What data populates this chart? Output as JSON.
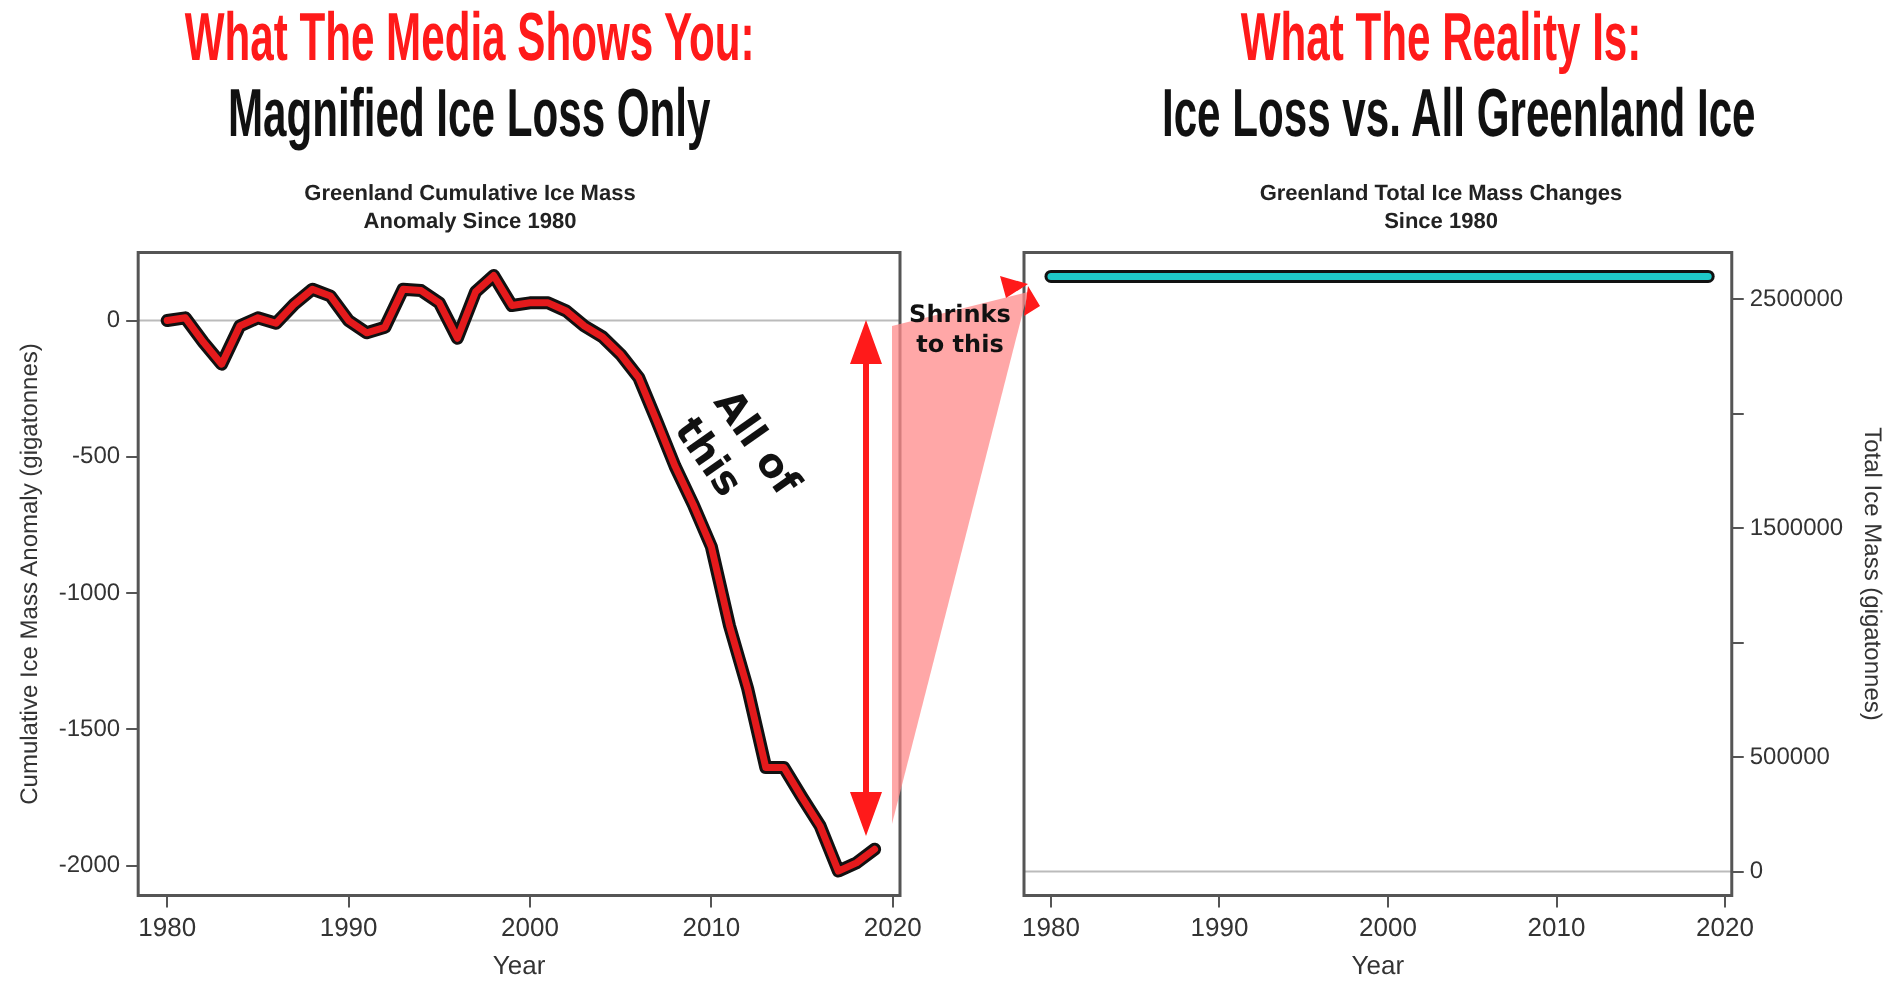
{
  "chart_data": [
    {
      "type": "line",
      "title": "Magnified Ice Loss Only",
      "subtitle": "Greenland Cumulative Ice Mass Anomaly Since 1980",
      "xlabel": "Year",
      "ylabel": "Cumulative Ice Mass Anomaly (gigatonnes)",
      "annotations": [
        "What The Media Shows You:",
        "All of this",
        "Shrinks to this"
      ],
      "x": [
        1980,
        1981,
        1982,
        1983,
        1984,
        1985,
        1986,
        1987,
        1988,
        1989,
        1990,
        1991,
        1992,
        1993,
        1994,
        1995,
        1996,
        1997,
        1998,
        1999,
        2000,
        2001,
        2002,
        2003,
        2004,
        2005,
        2006,
        2007,
        2008,
        2009,
        2010,
        2011,
        2012,
        2013,
        2014,
        2015,
        2016,
        2017,
        2018,
        2019
      ],
      "series": [
        {
          "color": "#e41a1c",
          "values": [
            0,
            10,
            -80,
            -160,
            -20,
            10,
            -10,
            60,
            115,
            90,
            0,
            -45,
            -25,
            115,
            110,
            65,
            -65,
            105,
            165,
            55,
            65,
            65,
            35,
            -20,
            -60,
            -125,
            -210,
            -370,
            -535,
            -675,
            -830,
            -1120,
            -1350,
            -1640,
            -1640,
            -1750,
            -1855,
            -2020,
            -1990,
            -1940
          ]
        }
      ],
      "xlim": [
        1978.4,
        2020.4
      ],
      "xticks": [
        1980,
        1990,
        2000,
        2010,
        2020
      ],
      "ylim": [
        -2110,
        250
      ],
      "yticks": [
        -2000,
        -1500,
        -1000,
        -500,
        0
      ],
      "ref_lines": [
        {
          "axis": "y",
          "value": 0,
          "color": "#bbbbbb"
        }
      ],
      "marker": "none",
      "line_style": "solid",
      "legend": false
    },
    {
      "type": "line",
      "title": "Ice Loss vs. All Greenland Ice",
      "subtitle": "Greenland Total Ice Mass Changes Since 1980",
      "xlabel": "Year",
      "y2label": "Total Ice Mass (gigatonnes)",
      "annotations": [
        "What The Reality Is:"
      ],
      "x": [
        1980,
        1981,
        1982,
        1983,
        1984,
        1985,
        1986,
        1987,
        1988,
        1989,
        1990,
        1991,
        1992,
        1993,
        1994,
        1995,
        1996,
        1997,
        1998,
        1999,
        2000,
        2001,
        2002,
        2003,
        2004,
        2005,
        2006,
        2007,
        2008,
        2009,
        2010,
        2011,
        2012,
        2013,
        2014,
        2015,
        2016,
        2017,
        2018,
        2019
      ],
      "series": [
        {
          "color": "#1ec8c8",
          "axis": "y2",
          "values": [
            2600000,
            2600000,
            2600000,
            2600000,
            2600000,
            2600000,
            2600000,
            2600000,
            2600000,
            2600000,
            2600000,
            2600000,
            2600000,
            2600000,
            2600000,
            2600000,
            2600000,
            2600000,
            2600000,
            2600000,
            2600000,
            2600000,
            2600000,
            2600000,
            2600000,
            2600000,
            2600000,
            2600000,
            2600000,
            2600000,
            2600000,
            2600000,
            2600000,
            2600000,
            2600000,
            2600000,
            2600000,
            2600000,
            2600000,
            2600000
          ]
        }
      ],
      "xlim": [
        1978.4,
        2020.4
      ],
      "xticks": [
        1980,
        1990,
        2000,
        2010,
        2020
      ],
      "y2lim": [
        -105000,
        2705000
      ],
      "y2ticks": [
        0,
        500000,
        {
          "value": 1000000,
          "label": null
        },
        1500000,
        {
          "value": 2000000,
          "label": null
        },
        2500000
      ],
      "ref_lines": [
        {
          "axis": "y2",
          "value": 0,
          "color": "#bbbbbb"
        }
      ],
      "marker": "none",
      "line_style": "solid",
      "legend": false
    }
  ]
}
